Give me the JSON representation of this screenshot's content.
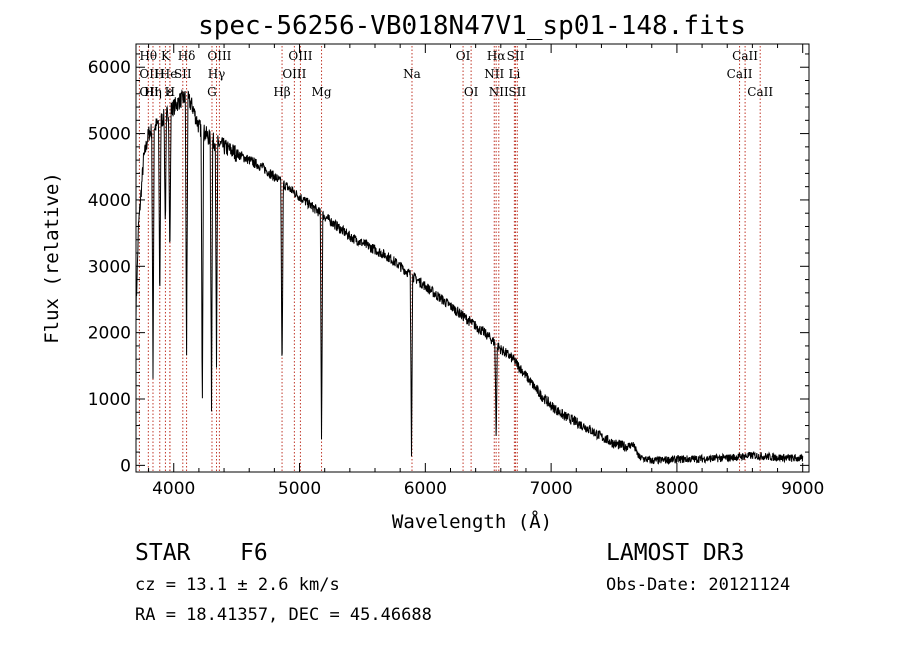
{
  "chart_data": {
    "type": "line",
    "title": "spec-56256-VB018N47V1_sp01-148.fits",
    "xlabel": "Wavelength (Å)",
    "ylabel": "Flux (relative)",
    "xlim": [
      3700,
      9050
    ],
    "ylim": [
      -100,
      6350
    ],
    "x_ticks": [
      4000,
      5000,
      6000,
      7000,
      8000,
      9000
    ],
    "y_ticks": [
      0,
      1000,
      2000,
      3000,
      4000,
      5000,
      6000
    ],
    "x_tick_labels": [
      "4000",
      "5000",
      "6000",
      "7000",
      "8000",
      "9000"
    ],
    "y_tick_labels": [
      "0",
      "1000",
      "2000",
      "3000",
      "4000",
      "5000",
      "6000"
    ],
    "line_color": "#000000",
    "marker_color": "#c0392b",
    "spectrum": {
      "continuum_points": [
        [
          3700,
          2300
        ],
        [
          3720,
          3600
        ],
        [
          3760,
          4600
        ],
        [
          3800,
          5000
        ],
        [
          3850,
          5100
        ],
        [
          3900,
          5200
        ],
        [
          3950,
          5300
        ],
        [
          4000,
          5400
        ],
        [
          4050,
          5500
        ],
        [
          4100,
          5550
        ],
        [
          4150,
          5400
        ],
        [
          4200,
          5100
        ],
        [
          4300,
          4900
        ],
        [
          4400,
          4800
        ],
        [
          4500,
          4700
        ],
        [
          4600,
          4600
        ],
        [
          4700,
          4500
        ],
        [
          4800,
          4350
        ],
        [
          4900,
          4200
        ],
        [
          5000,
          4050
        ],
        [
          5100,
          3900
        ],
        [
          5200,
          3750
        ],
        [
          5300,
          3600
        ],
        [
          5400,
          3450
        ],
        [
          5500,
          3350
        ],
        [
          5600,
          3250
        ],
        [
          5700,
          3150
        ],
        [
          5800,
          3000
        ],
        [
          5900,
          2850
        ],
        [
          6000,
          2700
        ],
        [
          6100,
          2550
        ],
        [
          6200,
          2400
        ],
        [
          6300,
          2250
        ],
        [
          6400,
          2100
        ],
        [
          6500,
          1950
        ],
        [
          6600,
          1750
        ],
        [
          6700,
          1600
        ],
        [
          6800,
          1350
        ],
        [
          6900,
          1100
        ],
        [
          7000,
          900
        ],
        [
          7100,
          750
        ],
        [
          7200,
          650
        ],
        [
          7300,
          550
        ],
        [
          7400,
          430
        ],
        [
          7500,
          330
        ],
        [
          7600,
          280
        ],
        [
          7650,
          320
        ],
        [
          7700,
          120
        ],
        [
          7800,
          70
        ],
        [
          8000,
          90
        ],
        [
          8200,
          100
        ],
        [
          8400,
          110
        ],
        [
          8600,
          150
        ],
        [
          8800,
          120
        ],
        [
          9000,
          100
        ]
      ],
      "absorption_dips": [
        [
          3835,
          1300
        ],
        [
          3889,
          2400
        ],
        [
          3933,
          3600
        ],
        [
          3969,
          3100
        ],
        [
          4102,
          1500
        ],
        [
          4227,
          900
        ],
        [
          4300,
          900
        ],
        [
          4340,
          1400
        ],
        [
          4861,
          1300
        ],
        [
          5175,
          400
        ],
        [
          5890,
          200
        ],
        [
          6563,
          400
        ]
      ],
      "noise_amplitude": 120
    },
    "lines": [
      {
        "label": "Hθ",
        "x": 3798,
        "row": 0,
        "ha": "middle"
      },
      {
        "label": "OII",
        "x": 3727,
        "row": 1,
        "ha": "start"
      },
      {
        "label": "OII",
        "x": 3727,
        "row": 2,
        "ha": "start"
      },
      {
        "label": "Hη",
        "x": 3835,
        "row": 2,
        "ha": "middle"
      },
      {
        "label": "H",
        "x": 3889,
        "row": 1,
        "ha": "middle"
      },
      {
        "label": "He",
        "x": 3889,
        "row": 1,
        "ha": "start"
      },
      {
        "label": "ε",
        "x": 3970,
        "row": 2,
        "ha": "middle"
      },
      {
        "label": "K",
        "x": 3934,
        "row": 0,
        "ha": "middle"
      },
      {
        "label": "H",
        "x": 3969,
        "row": 2,
        "ha": "middle"
      },
      {
        "label": "SII",
        "x": 4072,
        "row": 1,
        "ha": "middle"
      },
      {
        "label": "Hδ",
        "x": 4102,
        "row": 0,
        "ha": "middle"
      },
      {
        "label": "OIII",
        "x": 4363,
        "row": 0,
        "ha": "middle"
      },
      {
        "label": "Hγ",
        "x": 4340,
        "row": 1,
        "ha": "middle"
      },
      {
        "label": "G",
        "x": 4304,
        "row": 2,
        "ha": "middle"
      },
      {
        "label": "Hβ",
        "x": 4861,
        "row": 2,
        "ha": "middle"
      },
      {
        "label": "OIII",
        "x": 5007,
        "row": 0,
        "ha": "middle"
      },
      {
        "label": "OIII",
        "x": 4959,
        "row": 1,
        "ha": "middle"
      },
      {
        "label": "Mg",
        "x": 5175,
        "row": 2,
        "ha": "middle"
      },
      {
        "label": "Na",
        "x": 5894,
        "row": 1,
        "ha": "middle"
      },
      {
        "label": "OI",
        "x": 6300,
        "row": 0,
        "ha": "middle"
      },
      {
        "label": "OI",
        "x": 6364,
        "row": 2,
        "ha": "middle"
      },
      {
        "label": "Hα",
        "x": 6563,
        "row": 0,
        "ha": "middle"
      },
      {
        "label": "NII",
        "x": 6548,
        "row": 1,
        "ha": "middle"
      },
      {
        "label": "NII",
        "x": 6584,
        "row": 2,
        "ha": "middle"
      },
      {
        "label": "SII",
        "x": 6717,
        "row": 0,
        "ha": "middle"
      },
      {
        "label": "Li",
        "x": 6708,
        "row": 1,
        "ha": "middle"
      },
      {
        "label": "SII",
        "x": 6731,
        "row": 2,
        "ha": "middle"
      },
      {
        "label": "CaII",
        "x": 8542,
        "row": 0,
        "ha": "middle"
      },
      {
        "label": "CaII",
        "x": 8498,
        "row": 1,
        "ha": "middle"
      },
      {
        "label": "CaII",
        "x": 8662,
        "row": 2,
        "ha": "middle"
      }
    ]
  },
  "info": {
    "class_label": "STAR",
    "subclass": "F6",
    "survey": "LAMOST DR3",
    "cz_line": "cz = 13.1 ± 2.6 km/s",
    "obs_date": "Obs-Date: 20121124",
    "radec_line": "RA =  18.41357, DEC =  45.46688"
  }
}
